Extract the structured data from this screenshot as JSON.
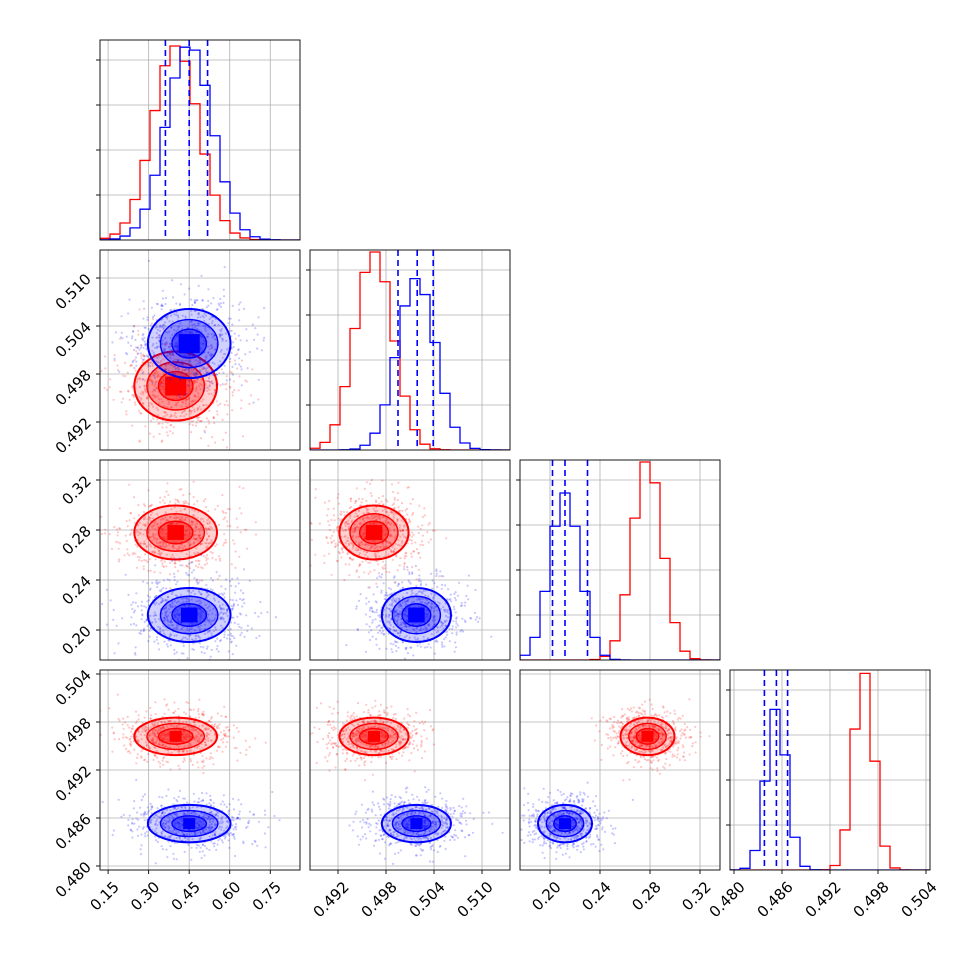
{
  "chart_data": {
    "type": "corner",
    "grid": true,
    "colors": {
      "red": "#ff0000",
      "blue": "#0000ff"
    },
    "params": [
      {
        "range": [
          0.12,
          0.86
        ],
        "ticks": [
          0.15,
          0.3,
          0.45,
          0.6,
          0.75
        ],
        "tick_labels": [
          "0.15",
          "0.30",
          "0.45",
          "0.60",
          "0.75"
        ]
      },
      {
        "range": [
          0.4885,
          0.5135
        ],
        "ticks": [
          0.492,
          0.498,
          0.504,
          0.51
        ],
        "tick_labels": [
          "0.492",
          "0.498",
          "0.504",
          "0.510"
        ]
      },
      {
        "range": [
          0.176,
          0.336
        ],
        "ticks": [
          0.2,
          0.24,
          0.28,
          0.32
        ],
        "tick_labels": [
          "0.20",
          "0.24",
          "0.28",
          "0.32"
        ]
      },
      {
        "range": [
          0.4795,
          0.5045
        ],
        "ticks": [
          0.48,
          0.486,
          0.492,
          0.498,
          0.504
        ],
        "tick_labels": [
          "0.480",
          "0.486",
          "0.492",
          "0.498",
          "0.504"
        ]
      }
    ],
    "series": [
      {
        "color": "#ff0000",
        "mean": [
          0.4,
          0.4965,
          0.278,
          0.4962
        ],
        "sd": [
          0.085,
          0.0024,
          0.012,
          0.0013
        ],
        "hist_bins": 20,
        "hist_peak": [
          0.97,
          0.99,
          0.99,
          0.983
        ]
      },
      {
        "color": "#0000ff",
        "mean": [
          0.45,
          0.5018,
          0.212,
          0.4853
        ],
        "sd": [
          0.085,
          0.0024,
          0.012,
          0.0013
        ],
        "hist_bins": 20,
        "hist_peak": [
          0.964,
          0.857,
          0.835,
          0.803
        ]
      }
    ],
    "quantile_lines": [
      [
        0.362,
        0.45,
        0.518
      ],
      [
        0.4995,
        0.5019,
        0.5039
      ],
      [
        0.202,
        0.212,
        0.23
      ],
      [
        0.4838,
        0.4853,
        0.4867
      ]
    ]
  }
}
